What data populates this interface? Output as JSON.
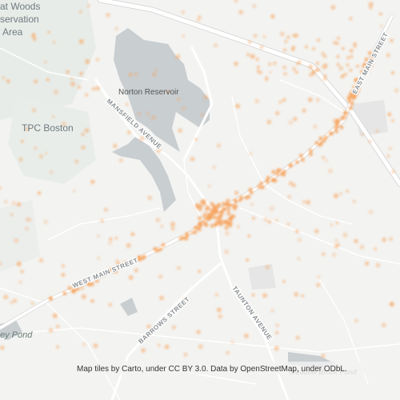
{
  "map": {
    "labels": {
      "area_line1": "at Woods",
      "area_line2": "servation",
      "area_line3": "Area",
      "reservoir": "Norton Reservoir",
      "golf": "TPC Boston",
      "mansfield": "MANSFIELD AVENUE",
      "west_main": "WEST MAIN STREET",
      "east_main": "EAST MAIN STREET",
      "barrows": "BARROWS STREET",
      "taunton": "TAUNTON AVENUE",
      "pond_left": "ey Pond",
      "pond_bottom": "Meadow Brook Pond"
    },
    "attribution": "Map tiles by Carto, under CC BY 3.0. Data by OpenStreetMap, under ODbL."
  }
}
